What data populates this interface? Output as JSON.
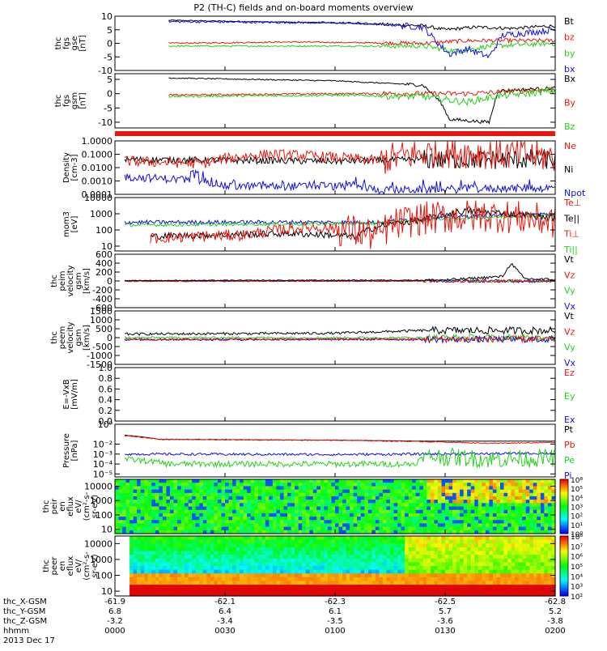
{
  "title": "P2 (TH-C) fields and on-board moments overview",
  "colors": {
    "black": "#000000",
    "red": "#e8160c",
    "green": "#22d21a",
    "blue": "#1010e0"
  },
  "panels": [
    {
      "id": "fgs-gse",
      "ylabel": [
        "thc",
        "fgs",
        "gse",
        "[nT]"
      ],
      "ticks": [
        "10",
        "5",
        "0",
        "-5",
        "-10"
      ],
      "tickvals": [
        10,
        5,
        0,
        -5,
        -10
      ],
      "ylim": [
        -10,
        10
      ],
      "log": false,
      "legend": [
        {
          "text": "Bt",
          "color": "black"
        },
        {
          "text": "bz",
          "color": "red"
        },
        {
          "text": "by",
          "color": "green"
        },
        {
          "text": "bx",
          "color": "blue"
        }
      ]
    },
    {
      "id": "fgs-gsm",
      "ylabel": [
        "thc",
        "fgs",
        "gsm",
        "[nT]"
      ],
      "ticks": [
        "5",
        "0",
        "-5",
        "-10"
      ],
      "tickvals": [
        5,
        0,
        -5,
        -10
      ],
      "ylim": [
        -12,
        7
      ],
      "log": false,
      "legend": [
        {
          "text": "Bx",
          "color": "black"
        },
        {
          "text": "By",
          "color": "red"
        },
        {
          "text": "Bz",
          "color": "green"
        }
      ]
    },
    {
      "id": "density",
      "ylabel": [
        "Density",
        "[cm-3]"
      ],
      "ticks": [
        "1.0000",
        "0.1000",
        "0.0100",
        "0.0010",
        "0.0001"
      ],
      "tickvals": [
        1,
        0.1,
        0.01,
        0.001,
        0.0001
      ],
      "ylim": [
        0.0001,
        1
      ],
      "log": true,
      "legend": [
        {
          "text": "Ne",
          "color": "red"
        },
        {
          "text": "Ni",
          "color": "black"
        },
        {
          "text": "Npot",
          "color": "blue"
        }
      ]
    },
    {
      "id": "temp",
      "ylabel": [
        "mom3",
        "[eV]"
      ],
      "ticks": [
        "10000",
        "1000",
        "100",
        "10"
      ],
      "tickvals": [
        10000,
        1000,
        100,
        10
      ],
      "ylim": [
        5,
        10000
      ],
      "log": true,
      "legend": [
        {
          "text": "Te⊥",
          "color": "red"
        },
        {
          "text": "Te||",
          "color": "black"
        },
        {
          "text": "Ti⊥",
          "color": "red"
        },
        {
          "text": "Ti||",
          "color": "green"
        }
      ]
    },
    {
      "id": "peim-vel",
      "ylabel": [
        "thc",
        "peim",
        "velocity",
        "gsm",
        "[km/s]"
      ],
      "ticks": [
        "600",
        "400",
        "200",
        "0",
        "-200",
        "-400",
        "-600"
      ],
      "tickvals": [
        600,
        400,
        200,
        0,
        -200,
        -400,
        -600
      ],
      "ylim": [
        -600,
        600
      ],
      "log": false,
      "legend": [
        {
          "text": "Vt",
          "color": "black"
        },
        {
          "text": "Vz",
          "color": "red"
        },
        {
          "text": "Vy",
          "color": "green"
        },
        {
          "text": "Vx",
          "color": "blue"
        }
      ]
    },
    {
      "id": "peem-vel",
      "ylabel": [
        "thc",
        "peem",
        "velocity",
        "gsm",
        "[km/s]"
      ],
      "ticks": [
        "1500",
        "1000",
        "500",
        "0",
        "-500",
        "-1000",
        "-1500"
      ],
      "tickvals": [
        1500,
        1000,
        500,
        0,
        -500,
        -1000,
        -1500
      ],
      "ylim": [
        -1500,
        1500
      ],
      "log": false,
      "legend": [
        {
          "text": "Vt",
          "color": "black"
        },
        {
          "text": "Vz",
          "color": "red"
        },
        {
          "text": "Vy",
          "color": "green"
        },
        {
          "text": "Vx",
          "color": "blue"
        }
      ]
    },
    {
      "id": "efield",
      "ylabel": [
        "E=-VxB",
        "[mV/m]"
      ],
      "ticks": [
        "1.0",
        "0.8",
        "0.6",
        "0.4",
        "0.2",
        "0.0"
      ],
      "tickvals": [
        1,
        0.8,
        0.6,
        0.4,
        0.2,
        0
      ],
      "ylim": [
        0,
        1
      ],
      "log": false,
      "legend": [
        {
          "text": "Ez",
          "color": "red"
        },
        {
          "text": "Ey",
          "color": "green"
        },
        {
          "text": "Ex",
          "color": "blue"
        }
      ]
    },
    {
      "id": "pressure",
      "ylabel": [
        "Pressure",
        "[nPa]"
      ],
      "ticks": [
        "10⁰",
        "10⁻²",
        "10⁻³",
        "10⁻⁴",
        "10⁻⁵"
      ],
      "tickvals": [
        1,
        0.01,
        0.001,
        0.0001,
        1e-05
      ],
      "ylim": [
        5e-06,
        1
      ],
      "log": true,
      "legend": [
        {
          "text": "Pt",
          "color": "black"
        },
        {
          "text": "Pb",
          "color": "red"
        },
        {
          "text": "Pe",
          "color": "green"
        },
        {
          "text": "Pi",
          "color": "blue"
        }
      ]
    },
    {
      "id": "peir-spec",
      "ylabel": [
        "thc",
        "peir",
        "en",
        "eflux",
        "eV/",
        "(cm²-s-",
        "sr-eV)"
      ],
      "ticks": [
        "10000",
        "1000",
        "100",
        "10"
      ],
      "tickvals": [
        10000,
        1000,
        100,
        10
      ],
      "ylim": [
        5,
        30000
      ],
      "log": true,
      "legend": [],
      "colorbar": [
        "10⁸",
        "10⁵",
        "10⁴",
        "10³",
        "10²",
        "10¹",
        "10⁰"
      ]
    },
    {
      "id": "peer-spec",
      "ylabel": [
        "thc",
        "peer",
        "en",
        "eflux",
        "eV/",
        "(cm²-s-",
        "sr-eV)"
      ],
      "ticks": [
        "10000",
        "1000",
        "100",
        "10"
      ],
      "tickvals": [
        10000,
        1000,
        100,
        10
      ],
      "ylim": [
        5,
        30000
      ],
      "log": true,
      "legend": [],
      "colorbar": [
        "10⁸",
        "10⁷",
        "10⁶",
        "10⁵",
        "10⁴",
        "10³",
        "10²"
      ]
    }
  ],
  "xaxis": {
    "rows": [
      {
        "label": "thc_X-GSM",
        "values": [
          "-61.9",
          "-62.1",
          "-62.3",
          "-62.5",
          "-62.8"
        ]
      },
      {
        "label": "thc_Y-GSM",
        "values": [
          "6.8",
          "6.4",
          "6.1",
          "5.7",
          "5.2"
        ]
      },
      {
        "label": "thc_Z-GSM",
        "values": [
          "-3.2",
          "-3.4",
          "-3.5",
          "-3.6",
          "-3.8"
        ]
      },
      {
        "label": "hhmm",
        "values": [
          "0000",
          "0030",
          "0100",
          "0130",
          "0200"
        ]
      }
    ],
    "date": "2013 Dec 17"
  },
  "chart_data": {
    "type": "line",
    "title": "P2 (TH-C) fields and on-board moments overview",
    "x": [
      "0000",
      "0030",
      "0100",
      "0130",
      "0200"
    ],
    "series": [
      {
        "name": "Bt",
        "panel": "fgs-gse",
        "approx_values": [
          8,
          8,
          7.5,
          6,
          6
        ]
      },
      {
        "name": "bz",
        "panel": "fgs-gse",
        "approx_values": [
          0,
          1,
          0.5,
          0,
          1
        ]
      },
      {
        "name": "by",
        "panel": "fgs-gse",
        "approx_values": [
          -1,
          -0.5,
          -1,
          -2,
          0
        ]
      },
      {
        "name": "bx",
        "panel": "fgs-gse",
        "approx_values": [
          8,
          8,
          7,
          -4,
          5
        ]
      },
      {
        "name": "Ne",
        "panel": "density",
        "approx_values": [
          0.05,
          0.03,
          0.02,
          0.1,
          0.05
        ]
      },
      {
        "name": "Ni",
        "panel": "density",
        "approx_values": [
          0.04,
          0.04,
          0.03,
          0.05,
          0.04
        ]
      },
      {
        "name": "Npot",
        "panel": "density",
        "approx_values": [
          0.001,
          0.0003,
          0.0003,
          0.0002,
          0.0002
        ]
      },
      {
        "name": "Pt",
        "panel": "pressure",
        "approx_values": [
          0.05,
          0.03,
          0.03,
          0.02,
          0.02
        ]
      },
      {
        "name": "Pe",
        "panel": "pressure",
        "approx_values": [
          0.0001,
          0.0001,
          0.0001,
          0.001,
          0.0005
        ]
      },
      {
        "name": "Pi",
        "panel": "pressure",
        "approx_values": [
          0.001,
          0.001,
          0.001,
          0.001,
          0.001
        ]
      }
    ]
  }
}
